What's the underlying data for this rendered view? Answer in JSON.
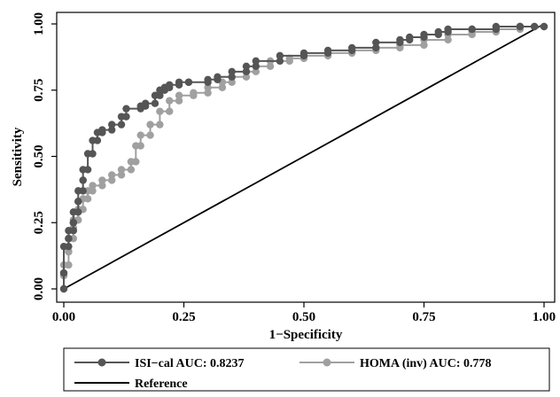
{
  "chart_data": {
    "type": "line",
    "xlabel": "1−Specificity",
    "ylabel": "Sensitivity",
    "xlim": [
      0,
      1
    ],
    "ylim": [
      0,
      1
    ],
    "x_ticks": [
      "0.00",
      "0.25",
      "0.50",
      "0.75",
      "1.00"
    ],
    "y_ticks": [
      "0.00",
      "0.25",
      "0.50",
      "0.75",
      "1.00"
    ],
    "grid": false,
    "legend_position": "bottom",
    "series": [
      {
        "name": "ISI−cal AUC: 0.8237",
        "color": "#555555",
        "x": [
          0.0,
          0.0,
          0.01,
          0.01,
          0.02,
          0.02,
          0.03,
          0.03,
          0.04,
          0.04,
          0.05,
          0.06,
          0.07,
          0.08,
          0.1,
          0.12,
          0.13,
          0.16,
          0.17,
          0.19,
          0.2,
          0.21,
          0.22,
          0.24,
          0.26,
          0.3,
          0.32,
          0.35,
          0.38,
          0.4,
          0.45,
          0.5,
          0.55,
          0.6,
          0.65,
          0.7,
          0.72,
          0.75,
          0.78,
          0.8,
          0.85,
          0.9,
          0.95,
          0.98,
          1.0
        ],
        "y": [
          0.0,
          0.06,
          0.16,
          0.19,
          0.22,
          0.25,
          0.29,
          0.33,
          0.37,
          0.41,
          0.45,
          0.51,
          0.56,
          0.59,
          0.6,
          0.62,
          0.65,
          0.68,
          0.69,
          0.7,
          0.73,
          0.75,
          0.76,
          0.77,
          0.78,
          0.78,
          0.79,
          0.8,
          0.82,
          0.84,
          0.86,
          0.88,
          0.89,
          0.9,
          0.91,
          0.93,
          0.94,
          0.95,
          0.96,
          0.97,
          0.98,
          0.98,
          0.99,
          0.99,
          0.99
        ]
      },
      {
        "name": "HOMA (inv) AUC: 0.778",
        "color": "#a0a0a0",
        "x": [
          0.0,
          0.0,
          0.01,
          0.01,
          0.02,
          0.02,
          0.03,
          0.04,
          0.05,
          0.06,
          0.08,
          0.1,
          0.12,
          0.14,
          0.15,
          0.16,
          0.18,
          0.2,
          0.22,
          0.24,
          0.27,
          0.3,
          0.33,
          0.35,
          0.38,
          0.4,
          0.43,
          0.47,
          0.5,
          0.55,
          0.6,
          0.65,
          0.7,
          0.75,
          0.8,
          0.85,
          0.9,
          0.95,
          1.0
        ],
        "y": [
          0.0,
          0.05,
          0.09,
          0.14,
          0.19,
          0.23,
          0.26,
          0.3,
          0.34,
          0.37,
          0.39,
          0.41,
          0.43,
          0.45,
          0.48,
          0.54,
          0.58,
          0.62,
          0.67,
          0.71,
          0.73,
          0.74,
          0.76,
          0.78,
          0.8,
          0.82,
          0.84,
          0.86,
          0.87,
          0.88,
          0.89,
          0.9,
          0.91,
          0.92,
          0.94,
          0.96,
          0.97,
          0.98,
          0.99
        ]
      },
      {
        "name": "Reference",
        "color": "#000000",
        "x": [
          0.0,
          1.0
        ],
        "y": [
          0.0,
          1.0
        ]
      }
    ]
  }
}
